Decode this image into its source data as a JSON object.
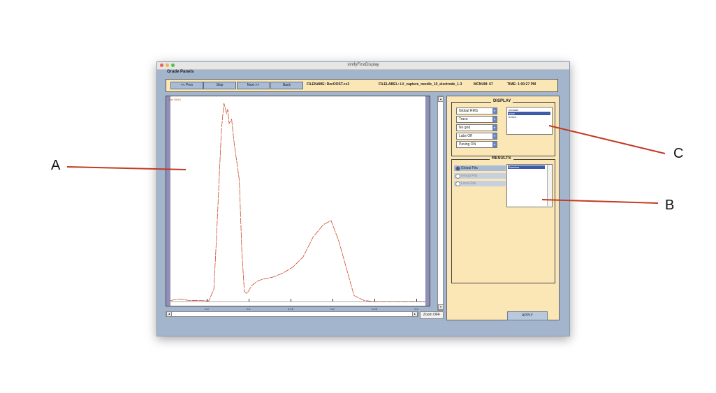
{
  "window": {
    "title": "xinIfyFirstDisplay",
    "panel_label": "Grade Panels",
    "traffic_lights": [
      "#ec5f57",
      "#e9bb45",
      "#5bbd49"
    ]
  },
  "toolbar": {
    "prev_label": "<< Prev",
    "skip_label": "Skip",
    "next_label": "Next >>",
    "back_label": "Back",
    "filename": "FILENAME: RecOOST.cs3",
    "filelabel": "FILELABEL: LV_capture_needle_10_electrode_1-3",
    "mcnum": "MCNUM: 67",
    "time": "TIME: 1:00:27 PM"
  },
  "plot": {
    "legend": "Trial 35/40",
    "trace_color": "#d0492a",
    "x_ticks": [
      "0.0",
      "0.1",
      "0.15",
      "0.2",
      "0.25",
      "0.3"
    ],
    "zoom_label": "Zoom OFF",
    "up_arrow": "▴",
    "down_arrow": "▾",
    "left_arrow": "◂",
    "right_arrow": "▸"
  },
  "chart_data": {
    "type": "line",
    "x": [
      0,
      0.03,
      0.08,
      0.1,
      0.15,
      0.17,
      0.18,
      0.2,
      0.21,
      0.22,
      0.225,
      0.23,
      0.24,
      0.25,
      0.27,
      0.28,
      0.29,
      0.3,
      0.32,
      0.34,
      0.36,
      0.4,
      0.44,
      0.48,
      0.52,
      0.56,
      0.6,
      0.63,
      0.66,
      0.7,
      0.72,
      0.76,
      0.8,
      0.82,
      0.84,
      0.86,
      0.88,
      0.9,
      0.94,
      0.97,
      1.0
    ],
    "y": [
      0.005,
      0.012,
      0.005,
      0.006,
      0.003,
      0.06,
      0.3,
      0.85,
      0.98,
      0.93,
      0.95,
      0.88,
      0.9,
      0.78,
      0.6,
      0.25,
      0.05,
      0.04,
      0.08,
      0.1,
      0.11,
      0.12,
      0.14,
      0.17,
      0.22,
      0.32,
      0.38,
      0.4,
      0.3,
      0.12,
      0.03,
      0.005,
      0.0,
      0.0,
      0.0,
      0.0,
      0.0,
      0.0,
      0.0,
      0.0,
      0.0
    ],
    "xlim": [
      0,
      1
    ],
    "ylim": [
      0,
      1
    ],
    "grid": false
  },
  "display_group": {
    "title": "DISPLAY",
    "dropdowns": [
      "Global RMS",
      "Trace",
      "No grid",
      "Labs Off",
      "Paving ON"
    ],
    "list_items": [
      "mediate",
      "trace",
      "freeze"
    ],
    "selected_index": 1
  },
  "results_group": {
    "title": "RESULTS",
    "radios": [
      "Global Fits",
      "Group Fits",
      "Local Fits"
    ],
    "selected_index": 0,
    "list_items": [
      "Baseline"
    ],
    "apply_label": "APPLY"
  },
  "callouts": {
    "a": "A",
    "b": "B",
    "c": "C"
  }
}
